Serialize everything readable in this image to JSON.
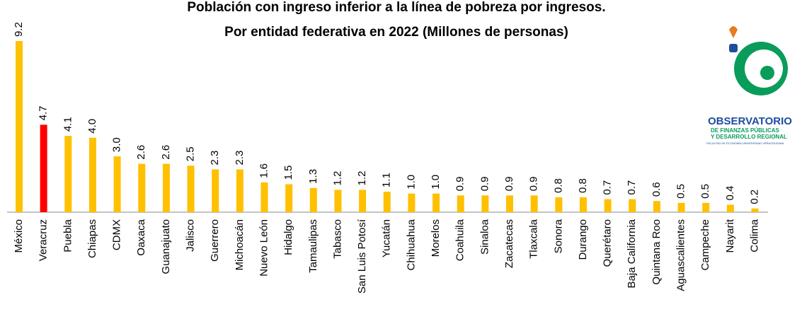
{
  "chart_data": {
    "type": "bar",
    "title": "Población con ingreso inferior a la línea de pobreza por ingresos.",
    "subtitle": "Por entidad federativa en 2022 (Millones de personas)",
    "categories": [
      "México",
      "Veracruz",
      "Puebla",
      "Chiapas",
      "CDMX",
      "Oaxaca",
      "Guanajuato",
      "Jalisco",
      "Guerrero",
      "Michoacán",
      "Nuevo León",
      "Hidalgo",
      "Tamaulipas",
      "Tabasco",
      "San Luis Potosí",
      "Yucatán",
      "Chihuahua",
      "Morelos",
      "Coahuila",
      "Sinaloa",
      "Zacatecas",
      "Tlaxcala",
      "Sonora",
      "Durango",
      "Querétaro",
      "Baja California",
      "Quintana Roo",
      "Aguascalientes",
      "Campeche",
      "Nayarit",
      "Colima"
    ],
    "values": [
      9.2,
      4.7,
      4.1,
      4.0,
      3.0,
      2.6,
      2.6,
      2.5,
      2.3,
      2.3,
      1.6,
      1.5,
      1.3,
      1.2,
      1.2,
      1.1,
      1.0,
      1.0,
      0.9,
      0.9,
      0.9,
      0.9,
      0.8,
      0.8,
      0.7,
      0.7,
      0.6,
      0.5,
      0.5,
      0.4,
      0.2
    ],
    "value_labels": [
      "9.2",
      "4.7",
      "4.1",
      "4.0",
      "3.0",
      "2.6",
      "2.6",
      "2.5",
      "2.3",
      "2.3",
      "1.6",
      "1.5",
      "1.3",
      "1.2",
      "1.2",
      "1.1",
      "1.0",
      "1.0",
      "0.9",
      "0.9",
      "0.9",
      "0.9",
      "0.8",
      "0.8",
      "0.7",
      "0.7",
      "0.6",
      "0.5",
      "0.5",
      "0.4",
      "0.2"
    ],
    "colors": [
      "#FFC000",
      "#FF0000",
      "#FFC000",
      "#FFC000",
      "#FFC000",
      "#FFC000",
      "#FFC000",
      "#FFC000",
      "#FFC000",
      "#FFC000",
      "#FFC000",
      "#FFC000",
      "#FFC000",
      "#FFC000",
      "#FFC000",
      "#FFC000",
      "#FFC000",
      "#FFC000",
      "#FFC000",
      "#FFC000",
      "#FFC000",
      "#FFC000",
      "#FFC000",
      "#FFC000",
      "#FFC000",
      "#FFC000",
      "#FFC000",
      "#FFC000",
      "#FFC000",
      "#FFC000",
      "#FFC000"
    ]
  },
  "logo": {
    "name": "OBSERVATORIO",
    "line1": "DE FINANZAS PÚBLICAS",
    "line2": "Y DESARROLLO REGIONAL",
    "line3": "FACULTAD DE ECONOMÍA UNIVERSIDAD VERACRUZANA"
  }
}
